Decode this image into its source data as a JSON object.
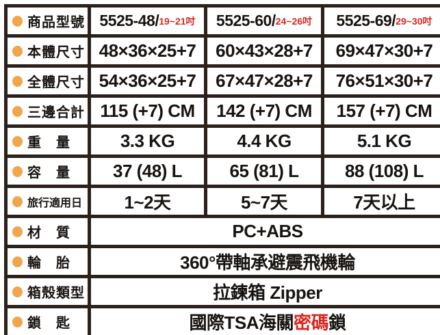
{
  "colors": {
    "border": "#2b211c",
    "bullet": "#f0a64a",
    "highlight_red": "#d8271f",
    "text": "#171310",
    "background": "#ffffff"
  },
  "rows": {
    "model": {
      "label": "商品型號",
      "cells": [
        {
          "main": "5525-48/",
          "sub": "19~21吋"
        },
        {
          "main": "5525-60/",
          "sub": "24~26吋"
        },
        {
          "main": "5525-69/",
          "sub": "29~30吋"
        }
      ]
    },
    "body_size": {
      "label": "本體尺寸",
      "cells": [
        "48×36×25+7",
        "60×43×28+7",
        "69×47×30+7"
      ]
    },
    "overall_size": {
      "label": "全體尺寸",
      "cells": [
        "54×36×25+7",
        "67×47×28+7",
        "76×51×30+7"
      ]
    },
    "three_sides_total": {
      "label": "三邊合計",
      "cells": [
        "115 (+7) CM",
        "142 (+7) CM",
        "157 (+7) CM"
      ]
    },
    "weight": {
      "label": "重　量",
      "cells": [
        "3.3 KG",
        "4.4 KG",
        "5.1 KG"
      ]
    },
    "capacity": {
      "label": "容　量",
      "cells": [
        "37 (48) L",
        "65 (81) L",
        "88 (108) L"
      ]
    },
    "travel_days": {
      "label": "旅行適用日",
      "cells": [
        "1~2天",
        "5~7天",
        "7天以上"
      ]
    },
    "material": {
      "label": "材　質",
      "value": "PC+ABS"
    },
    "wheels": {
      "label": "輪　胎",
      "value": "360°帶軸承避震飛機輪"
    },
    "shell_type": {
      "label": "箱殼類型",
      "value": "拉鍊箱 Zipper"
    },
    "lock": {
      "label": "鎖　匙",
      "value_pre": "國際TSA海關",
      "value_red": "密碼",
      "value_post": "鎖"
    }
  }
}
